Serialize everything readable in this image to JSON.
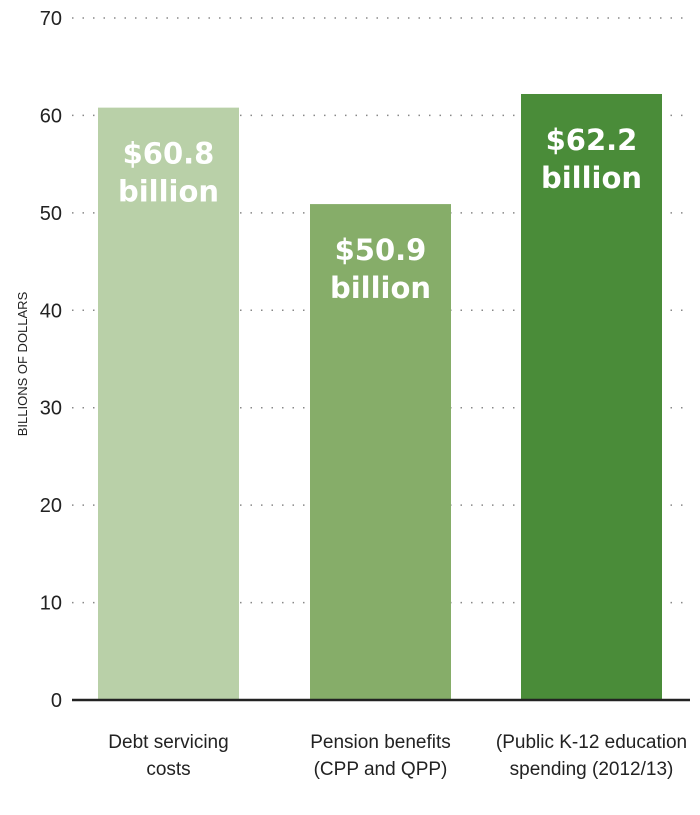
{
  "chart_data": {
    "type": "bar",
    "title": "",
    "xlabel": "",
    "ylabel": "BILLIONS OF DOLLARS",
    "ylim": [
      0,
      70
    ],
    "yticks": [
      0,
      10,
      20,
      30,
      40,
      50,
      60,
      70
    ],
    "grid": true,
    "categories": [
      [
        "Debt servicing",
        "costs"
      ],
      [
        "Pension benefits",
        "(CPP and QPP)"
      ],
      [
        "(Public K-12 education",
        "spending (2012/13)"
      ]
    ],
    "values": [
      60.8,
      50.9,
      62.2
    ],
    "data_labels": [
      [
        "$60.8",
        "billion"
      ],
      [
        "$50.9",
        "billion"
      ],
      [
        "$62.2",
        "billion"
      ]
    ],
    "colors": [
      "#b9d0a8",
      "#86ad69",
      "#4a8c39"
    ]
  }
}
